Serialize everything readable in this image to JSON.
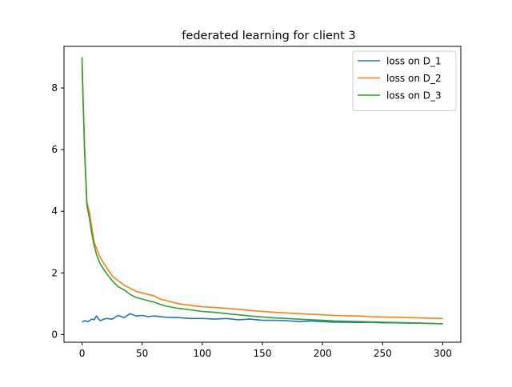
{
  "chart_data": {
    "type": "line",
    "title": "federated learning for client 3",
    "xlabel": "",
    "ylabel": "",
    "xlim": [
      -15,
      315
    ],
    "ylim": [
      -0.25,
      9.35
    ],
    "xticks": [
      0,
      50,
      100,
      150,
      200,
      250,
      300
    ],
    "yticks": [
      0,
      2,
      4,
      6,
      8
    ],
    "grid": false,
    "legend_position": "upper right",
    "series": [
      {
        "name": "loss on D_1",
        "color": "#1f77b4",
        "x": [
          0,
          2,
          5,
          8,
          10,
          12,
          15,
          20,
          25,
          30,
          35,
          40,
          45,
          50,
          55,
          60,
          70,
          80,
          90,
          100,
          110,
          120,
          130,
          140,
          150,
          160,
          170,
          180,
          190,
          200,
          210,
          220,
          230,
          240,
          250,
          260,
          270,
          280,
          290,
          300
        ],
        "y": [
          0.4,
          0.45,
          0.42,
          0.5,
          0.48,
          0.6,
          0.45,
          0.52,
          0.5,
          0.62,
          0.55,
          0.68,
          0.6,
          0.62,
          0.58,
          0.6,
          0.56,
          0.55,
          0.52,
          0.52,
          0.5,
          0.52,
          0.48,
          0.5,
          0.46,
          0.46,
          0.45,
          0.42,
          0.44,
          0.42,
          0.4,
          0.4,
          0.39,
          0.4,
          0.38,
          0.38,
          0.37,
          0.37,
          0.36,
          0.35
        ]
      },
      {
        "name": "loss on D_2",
        "color": "#ff7f0e",
        "x": [
          0,
          2,
          4,
          6,
          8,
          10,
          12,
          15,
          20,
          25,
          30,
          35,
          40,
          45,
          50,
          55,
          60,
          65,
          70,
          80,
          90,
          100,
          110,
          120,
          130,
          140,
          150,
          160,
          170,
          180,
          190,
          200,
          210,
          220,
          230,
          240,
          250,
          260,
          270,
          280,
          290,
          300
        ],
        "y": [
          8.7,
          6.2,
          4.3,
          4.0,
          3.5,
          3.0,
          2.8,
          2.5,
          2.2,
          1.9,
          1.75,
          1.6,
          1.5,
          1.4,
          1.35,
          1.3,
          1.25,
          1.15,
          1.1,
          1.0,
          0.95,
          0.9,
          0.88,
          0.85,
          0.82,
          0.78,
          0.75,
          0.72,
          0.7,
          0.68,
          0.66,
          0.64,
          0.62,
          0.61,
          0.6,
          0.58,
          0.57,
          0.56,
          0.55,
          0.54,
          0.53,
          0.52
        ]
      },
      {
        "name": "loss on D_3",
        "color": "#2ca02c",
        "x": [
          0,
          2,
          4,
          6,
          8,
          10,
          12,
          15,
          20,
          25,
          30,
          35,
          40,
          45,
          50,
          55,
          60,
          65,
          70,
          80,
          90,
          100,
          110,
          120,
          130,
          140,
          150,
          160,
          170,
          180,
          190,
          200,
          210,
          220,
          230,
          240,
          250,
          260,
          270,
          280,
          290,
          300
        ],
        "y": [
          9.0,
          6.0,
          4.2,
          3.8,
          3.3,
          2.9,
          2.6,
          2.3,
          2.0,
          1.75,
          1.55,
          1.45,
          1.3,
          1.2,
          1.15,
          1.1,
          1.05,
          0.98,
          0.92,
          0.85,
          0.8,
          0.75,
          0.72,
          0.68,
          0.64,
          0.6,
          0.57,
          0.54,
          0.52,
          0.5,
          0.48,
          0.46,
          0.44,
          0.43,
          0.42,
          0.41,
          0.4,
          0.39,
          0.38,
          0.37,
          0.36,
          0.35
        ]
      }
    ]
  }
}
